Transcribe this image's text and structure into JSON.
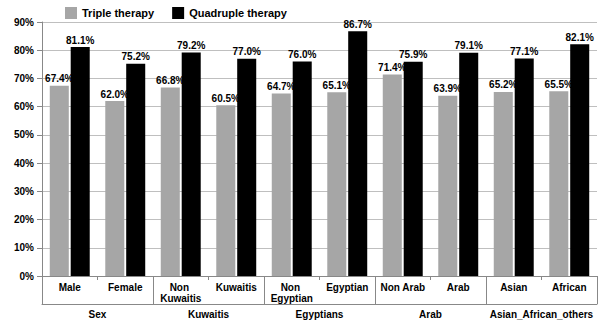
{
  "chart_data": {
    "type": "bar",
    "categories": [
      "Male",
      "Female",
      "Non Kuwaitis",
      "Kuwaitis",
      "Non Egyptian",
      "Egyptian",
      "Non Arab",
      "Arab",
      "Asian",
      "African"
    ],
    "group_labels": [
      "Sex",
      "Kuwaitis",
      "Egyptians",
      "Arab",
      "Asian_African_others"
    ],
    "series": [
      {
        "name": "Triple therapy",
        "color": "#a6a6a6",
        "values": [
          67.4,
          62.0,
          66.8,
          60.5,
          64.7,
          65.1,
          71.4,
          63.9,
          65.2,
          65.5
        ],
        "value_labels": [
          "67.4%",
          "62.0%",
          "66.8%",
          "60.5%",
          "64.7%",
          "65.1%",
          "71.4%",
          "63.9%",
          "65.2%",
          "65.5%"
        ]
      },
      {
        "name": "Quadruple therapy",
        "color": "#000000",
        "values": [
          81.1,
          75.2,
          79.2,
          77.0,
          76.0,
          86.7,
          75.9,
          79.1,
          77.1,
          82.1
        ],
        "value_labels": [
          "81.1%",
          "75.2%",
          "79.2%",
          "77.0%",
          "76.0%",
          "86.7%",
          "75.9%",
          "79.1%",
          "77.1%",
          "82.1%"
        ]
      }
    ],
    "ylim": [
      0,
      90
    ],
    "yticks": [
      {
        "value": 0,
        "label": "0%"
      },
      {
        "value": 10,
        "label": "10%"
      },
      {
        "value": 20,
        "label": "20%"
      },
      {
        "value": 30,
        "label": "30%"
      },
      {
        "value": 40,
        "label": "40%"
      },
      {
        "value": 50,
        "label": "50%"
      },
      {
        "value": 60,
        "label": "60%"
      },
      {
        "value": 70,
        "label": "70%"
      },
      {
        "value": 80,
        "label": "80%"
      },
      {
        "value": 90,
        "label": "90%"
      }
    ],
    "grid": true,
    "legend": "top-left",
    "data_labels": true
  }
}
